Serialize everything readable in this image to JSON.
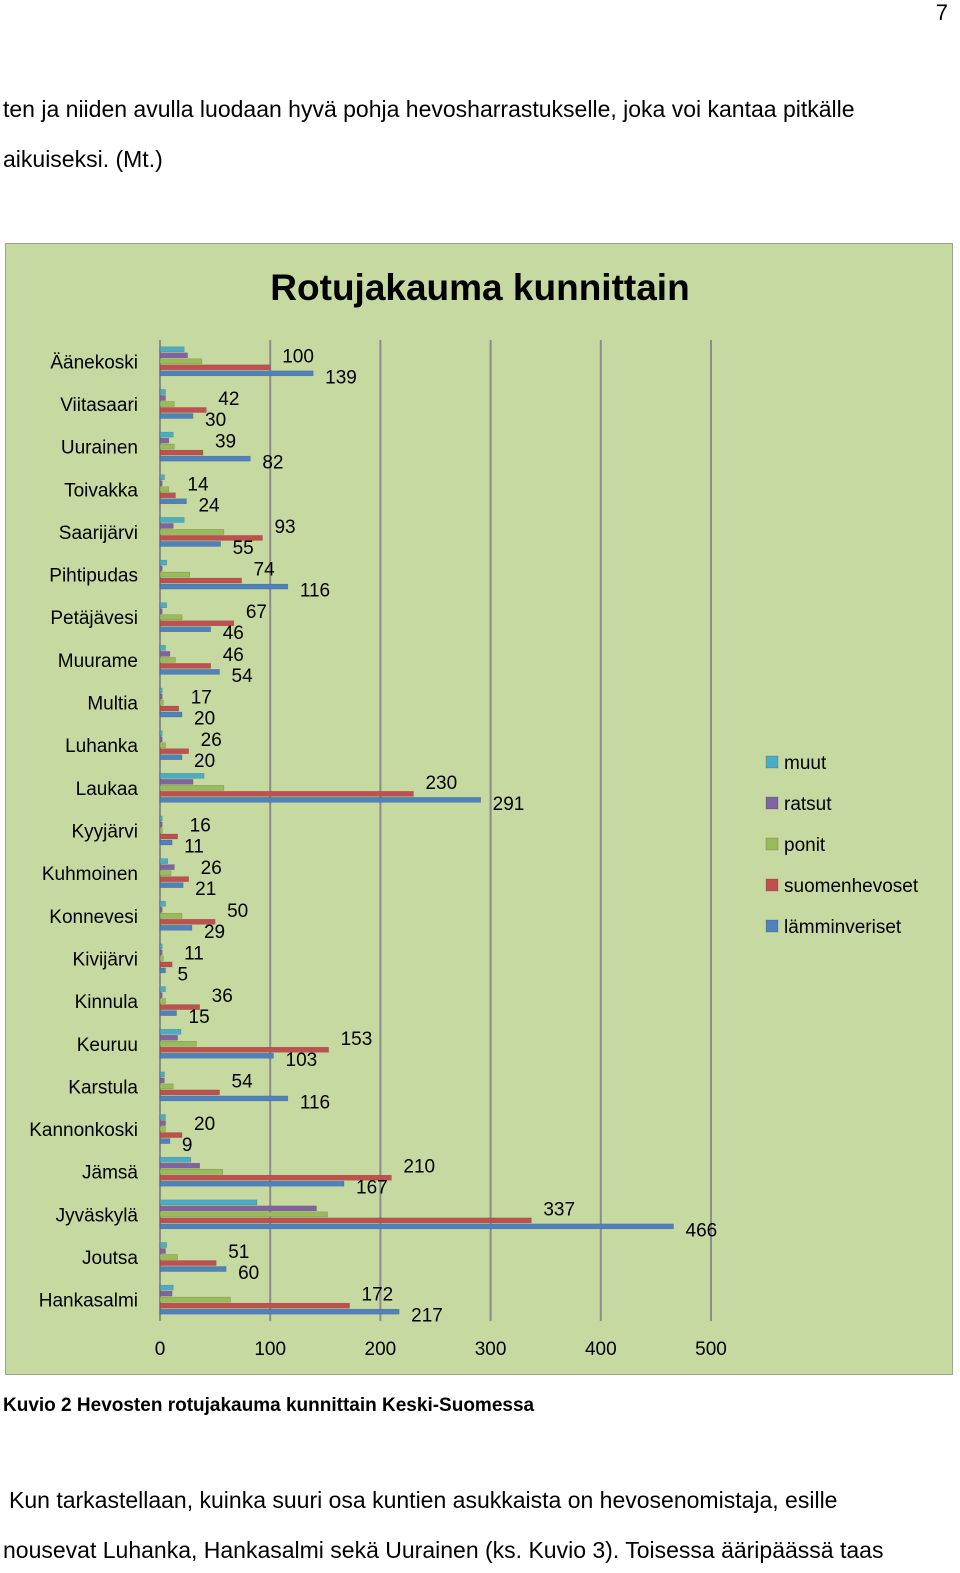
{
  "page": {
    "number": "7",
    "paragraph_lines": [
      "ten ja niiden avulla luodaan hyvä pohja hevosharrastukselle, joka voi kantaa pitkälle",
      "aikuiseksi. (Mt.)"
    ],
    "caption": "Kuvio 2 Hevosten rotujakauma kunnittain Keski-Suomessa",
    "after_lines": [
      "Kun tarkastellaan, kuinka suuri osa kuntien asukkaista on hevosenomistaja, esille",
      "nousevat Luhanka, Hankasalmi sekä Uurainen (ks. Kuvio 3). Toisessa ääripäässä taas"
    ]
  },
  "chart_data": {
    "type": "bar",
    "orientation": "horizontal",
    "title": "Rotujakauma kunnittain",
    "categories": [
      "Äänekoski",
      "Viitasaari",
      "Uurainen",
      "Toivakka",
      "Saarijärvi",
      "Pihtipudas",
      "Petäjävesi",
      "Muurame",
      "Multia",
      "Luhanka",
      "Laukaa",
      "Kyyjärvi",
      "Kuhmoinen",
      "Konnevesi",
      "Kivijärvi",
      "Kinnula",
      "Keuruu",
      "Karstula",
      "Kannonkoski",
      "Jämsä",
      "Jyväskylä",
      "Joutsa",
      "Hankasalmi"
    ],
    "xlim": [
      0,
      500
    ],
    "x_ticks": [
      0,
      100,
      200,
      300,
      400,
      500
    ],
    "grid": "vertical",
    "legend_position": "right",
    "background_color": "#c6d9a1",
    "series": [
      {
        "name": "muut",
        "color": "#4bacc6",
        "values": [
          22,
          5,
          12,
          4,
          22,
          6,
          6,
          5,
          2,
          2,
          40,
          2,
          7,
          5,
          2,
          5,
          19,
          4,
          5,
          28,
          88,
          6,
          12
        ]
      },
      {
        "name": "ratsut",
        "color": "#8064a2",
        "values": [
          25,
          5,
          8,
          2,
          12,
          2,
          2,
          9,
          2,
          2,
          30,
          2,
          13,
          2,
          2,
          2,
          16,
          4,
          5,
          36,
          142,
          5,
          11
        ]
      },
      {
        "name": "ponit",
        "color": "#9bbb59",
        "values": [
          38,
          13,
          13,
          8,
          58,
          27,
          20,
          14,
          3,
          5,
          58,
          2,
          10,
          20,
          3,
          5,
          33,
          12,
          5,
          57,
          152,
          16,
          64
        ]
      },
      {
        "name": "suomenhevoset",
        "color": "#c0504d",
        "values": [
          100,
          42,
          39,
          14,
          93,
          74,
          67,
          46,
          17,
          26,
          230,
          16,
          26,
          50,
          11,
          36,
          153,
          54,
          20,
          210,
          337,
          51,
          172
        ]
      },
      {
        "name": "lämminveriset",
        "color": "#4f81bd",
        "values": [
          139,
          30,
          82,
          24,
          55,
          116,
          46,
          54,
          20,
          20,
          291,
          11,
          21,
          29,
          5,
          15,
          103,
          116,
          9,
          167,
          466,
          60,
          217
        ]
      }
    ],
    "data_labels": [
      {
        "text": "100",
        "series": "suomenhevoset",
        "category": "Äänekoski"
      },
      {
        "text": "139",
        "series": "lämminveriset",
        "category": "Äänekoski"
      },
      {
        "text": "42",
        "series": "suomenhevoset",
        "category": "Viitasaari"
      },
      {
        "text": "30",
        "series": "lämminveriset",
        "category": "Viitasaari"
      },
      {
        "text": "39",
        "series": "suomenhevoset",
        "category": "Uurainen"
      },
      {
        "text": "82",
        "series": "lämminveriset",
        "category": "Uurainen"
      },
      {
        "text": "14",
        "series": "suomenhevoset",
        "category": "Toivakka"
      },
      {
        "text": "24",
        "series": "lämminveriset",
        "category": "Toivakka"
      },
      {
        "text": "93",
        "series": "suomenhevoset",
        "category": "Saarijärvi"
      },
      {
        "text": "55",
        "series": "lämminveriset",
        "category": "Saarijärvi"
      },
      {
        "text": "74",
        "series": "suomenhevoset",
        "category": "Pihtipudas"
      },
      {
        "text": "116",
        "series": "lämminveriset",
        "category": "Pihtipudas"
      },
      {
        "text": "67",
        "series": "suomenhevoset",
        "category": "Petäjävesi"
      },
      {
        "text": "46",
        "series": "lämminveriset",
        "category": "Petäjävesi"
      },
      {
        "text": "46",
        "series": "suomenhevoset",
        "category": "Muurame"
      },
      {
        "text": "54",
        "series": "lämminveriset",
        "category": "Muurame"
      },
      {
        "text": "17",
        "series": "suomenhevoset",
        "category": "Multia"
      },
      {
        "text": "20",
        "series": "lämminveriset",
        "category": "Multia"
      },
      {
        "text": "26",
        "series": "suomenhevoset",
        "category": "Luhanka"
      },
      {
        "text": "20",
        "series": "lämminveriset",
        "category": "Luhanka"
      },
      {
        "text": "230",
        "series": "suomenhevoset",
        "category": "Laukaa"
      },
      {
        "text": "291",
        "series": "lämminveriset",
        "category": "Laukaa"
      },
      {
        "text": "16",
        "series": "suomenhevoset",
        "category": "Kyyjärvi"
      },
      {
        "text": "11",
        "series": "lämminveriset",
        "category": "Kyyjärvi"
      },
      {
        "text": "26",
        "series": "suomenhevoset",
        "category": "Kuhmoinen"
      },
      {
        "text": "21",
        "series": "lämminveriset",
        "category": "Kuhmoinen"
      },
      {
        "text": "50",
        "series": "suomenhevoset",
        "category": "Konnevesi"
      },
      {
        "text": "29",
        "series": "lämminveriset",
        "category": "Konnevesi"
      },
      {
        "text": "11",
        "series": "suomenhevoset",
        "category": "Kivijärvi"
      },
      {
        "text": "5",
        "series": "lämminveriset",
        "category": "Kivijärvi"
      },
      {
        "text": "36",
        "series": "suomenhevoset",
        "category": "Kinnula"
      },
      {
        "text": "15",
        "series": "lämminveriset",
        "category": "Kinnula"
      },
      {
        "text": "153",
        "series": "suomenhevoset",
        "category": "Keuruu"
      },
      {
        "text": "103",
        "series": "lämminveriset",
        "category": "Keuruu"
      },
      {
        "text": "54",
        "series": "suomenhevoset",
        "category": "Karstula"
      },
      {
        "text": "116",
        "series": "lämminveriset",
        "category": "Karstula"
      },
      {
        "text": "20",
        "series": "suomenhevoset",
        "category": "Kannonkoski"
      },
      {
        "text": "9",
        "series": "lämminveriset",
        "category": "Kannonkoski"
      },
      {
        "text": "210",
        "series": "suomenhevoset",
        "category": "Jämsä"
      },
      {
        "text": "167",
        "series": "lämminveriset",
        "category": "Jämsä"
      },
      {
        "text": "337",
        "series": "suomenhevoset",
        "category": "Jyväskylä"
      },
      {
        "text": "466",
        "series": "lämminveriset",
        "category": "Jyväskylä"
      },
      {
        "text": "51",
        "series": "suomenhevoset",
        "category": "Joutsa"
      },
      {
        "text": "60",
        "series": "lämminveriset",
        "category": "Joutsa"
      },
      {
        "text": "172",
        "series": "suomenhevoset",
        "category": "Hankasalmi"
      },
      {
        "text": "217",
        "series": "lämminveriset",
        "category": "Hankasalmi"
      }
    ]
  }
}
